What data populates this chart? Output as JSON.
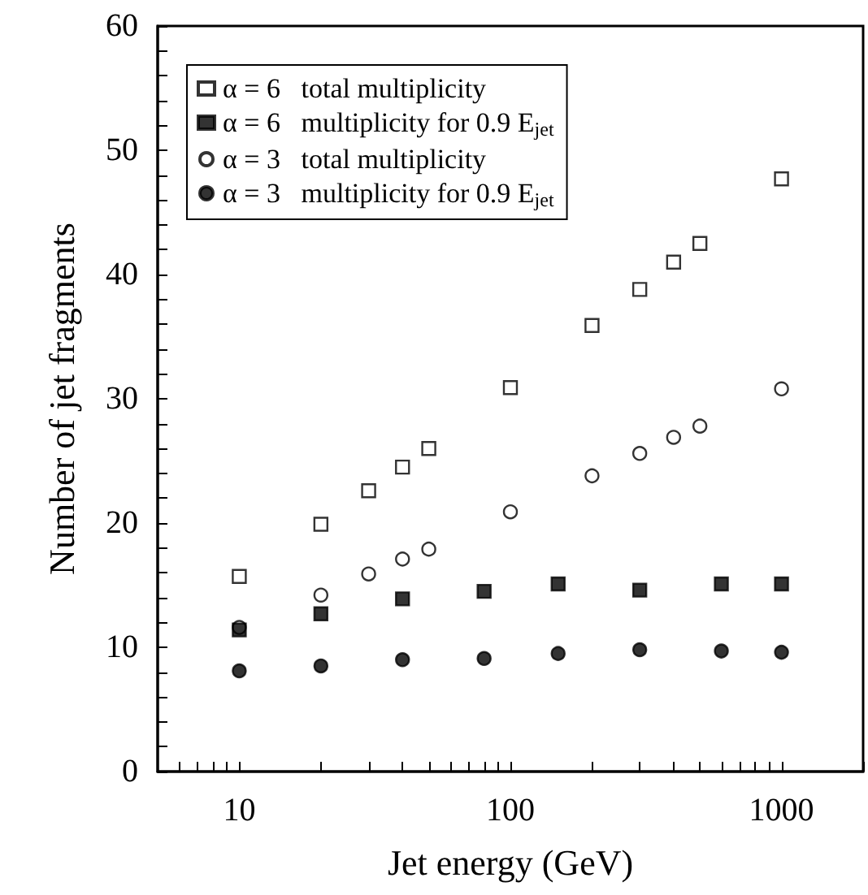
{
  "chart_data": {
    "type": "scatter",
    "xlabel": "Jet energy (GeV)",
    "ylabel": "Number of jet fragments",
    "log": "x",
    "grid": false,
    "legend": "top left",
    "xlim": [
      5,
      2000
    ],
    "xticks": [
      {
        "value": 6,
        "label": null
      },
      {
        "value": 7,
        "label": null
      },
      {
        "value": 8,
        "label": null
      },
      {
        "value": 9,
        "label": null
      },
      10,
      {
        "value": 20,
        "label": null
      },
      {
        "value": 30,
        "label": null
      },
      {
        "value": 40,
        "label": null
      },
      {
        "value": 50,
        "label": null
      },
      {
        "value": 60,
        "label": null
      },
      {
        "value": 70,
        "label": null
      },
      {
        "value": 80,
        "label": null
      },
      {
        "value": 90,
        "label": null
      },
      100,
      {
        "value": 200,
        "label": null
      },
      {
        "value": 300,
        "label": null
      },
      {
        "value": 400,
        "label": null
      },
      {
        "value": 500,
        "label": null
      },
      {
        "value": 600,
        "label": null
      },
      {
        "value": 700,
        "label": null
      },
      {
        "value": 800,
        "label": null
      },
      {
        "value": 900,
        "label": null
      },
      1000,
      {
        "value": 2000,
        "label": null
      }
    ],
    "ylim": [
      0,
      60
    ],
    "yticks": [
      0,
      {
        "value": 2,
        "label": null
      },
      {
        "value": 4,
        "label": null
      },
      {
        "value": 6,
        "label": null
      },
      {
        "value": 8,
        "label": null
      },
      10,
      {
        "value": 12,
        "label": null
      },
      {
        "value": 14,
        "label": null
      },
      {
        "value": 16,
        "label": null
      },
      {
        "value": 18,
        "label": null
      },
      20,
      {
        "value": 22,
        "label": null
      },
      {
        "value": 24,
        "label": null
      },
      {
        "value": 26,
        "label": null
      },
      {
        "value": 28,
        "label": null
      },
      30,
      {
        "value": 32,
        "label": null
      },
      {
        "value": 34,
        "label": null
      },
      {
        "value": 36,
        "label": null
      },
      {
        "value": 38,
        "label": null
      },
      40,
      {
        "value": 42,
        "label": null
      },
      {
        "value": 44,
        "label": null
      },
      {
        "value": 46,
        "label": null
      },
      {
        "value": 48,
        "label": null
      },
      50,
      {
        "value": 52,
        "label": null
      },
      {
        "value": 54,
        "label": null
      },
      {
        "value": 56,
        "label": null
      },
      {
        "value": 58,
        "label": null
      },
      60
    ],
    "series": [
      {
        "name": "α = 6   total multiplicity",
        "color": "#ffffff",
        "marker": "square",
        "x": [
          10,
          20,
          30,
          40,
          50,
          100,
          200,
          300,
          400,
          500,
          1000
        ],
        "values": [
          15.7,
          19.9,
          22.6,
          24.5,
          26.0,
          30.9,
          35.9,
          38.8,
          41.0,
          42.5,
          47.7
        ]
      },
      {
        "name": "α = 6   multiplicity for 0.9 E$_{jet}$",
        "color": "#000000",
        "marker": "square",
        "x": [
          10,
          20,
          40,
          80,
          150,
          300,
          600,
          1000
        ],
        "values": [
          11.4,
          12.7,
          13.9,
          14.5,
          15.1,
          14.6,
          15.1,
          15.1
        ]
      },
      {
        "name": "α = 3   total multiplicity",
        "color": "#ffffff",
        "marker": "circle",
        "x": [
          10,
          20,
          30,
          40,
          50,
          100,
          200,
          300,
          400,
          500,
          1000
        ],
        "values": [
          11.6,
          14.2,
          15.9,
          17.1,
          17.9,
          20.9,
          23.8,
          25.6,
          26.9,
          27.8,
          30.8
        ]
      },
      {
        "name": "α = 3   multiplicity for 0.9 E$_{jet}$",
        "color": "#000000",
        "marker": "circle",
        "x": [
          10,
          20,
          40,
          80,
          150,
          300,
          600,
          1000
        ],
        "values": [
          8.1,
          8.5,
          9.0,
          9.1,
          9.5,
          9.8,
          9.7,
          9.6
        ]
      }
    ]
  }
}
